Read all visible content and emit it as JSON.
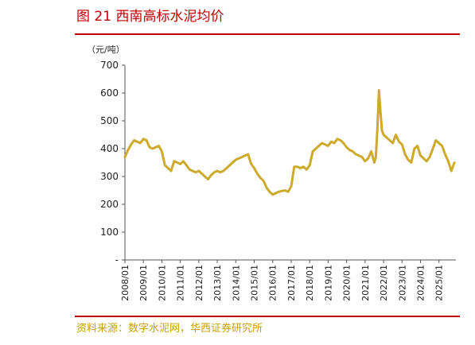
{
  "figure": {
    "title": "图 21 西南高标水泥均价",
    "source": "资料来源：数字水泥网，华西证券研究所"
  },
  "colors": {
    "accent": "#c00000",
    "series": "#cdaa2c",
    "source_text": "#c8a000"
  },
  "chart_data": {
    "type": "line",
    "title": "",
    "unit_label": "（元/吨）",
    "xlabel": "",
    "ylabel": "",
    "ylim": [
      0,
      700
    ],
    "yticks": [
      0,
      100,
      200,
      300,
      400,
      500,
      600,
      700
    ],
    "ytick_labels": [
      "-",
      "100",
      "200",
      "300",
      "400",
      "500",
      "600",
      "700"
    ],
    "xlim": [
      "2008-01",
      "2025-12"
    ],
    "xtick_labels": [
      "2008/01",
      "2009/01",
      "2010/01",
      "2011/01",
      "2012/01",
      "2013/01",
      "2014/01",
      "2015/01",
      "2016/01",
      "2017/01",
      "2018/01",
      "2019/01",
      "2020/01",
      "2021/01",
      "2022/01",
      "2023/01",
      "2024/01",
      "2025/01"
    ],
    "grid": false,
    "legend": "none",
    "series": [
      {
        "name": "",
        "x": [
          "2008-01",
          "2008-03",
          "2008-05",
          "2008-07",
          "2008-09",
          "2008-11",
          "2009-01",
          "2009-03",
          "2009-05",
          "2009-07",
          "2009-09",
          "2009-11",
          "2010-01",
          "2010-03",
          "2010-05",
          "2010-07",
          "2010-09",
          "2010-11",
          "2011-01",
          "2011-03",
          "2011-05",
          "2011-07",
          "2011-09",
          "2011-11",
          "2012-01",
          "2012-03",
          "2012-05",
          "2012-07",
          "2012-09",
          "2012-11",
          "2013-01",
          "2013-03",
          "2013-05",
          "2013-07",
          "2013-09",
          "2013-11",
          "2014-01",
          "2014-03",
          "2014-05",
          "2014-07",
          "2014-09",
          "2014-11",
          "2015-01",
          "2015-03",
          "2015-05",
          "2015-07",
          "2015-09",
          "2015-11",
          "2016-01",
          "2016-03",
          "2016-05",
          "2016-07",
          "2016-09",
          "2016-11",
          "2017-01",
          "2017-03",
          "2017-05",
          "2017-07",
          "2017-09",
          "2017-11",
          "2018-01",
          "2018-03",
          "2018-05",
          "2018-07",
          "2018-09",
          "2018-11",
          "2019-01",
          "2019-03",
          "2019-05",
          "2019-07",
          "2019-09",
          "2019-11",
          "2020-01",
          "2020-03",
          "2020-05",
          "2020-07",
          "2020-09",
          "2020-11",
          "2021-01",
          "2021-03",
          "2021-05",
          "2021-07",
          "2021-08",
          "2021-09",
          "2021-10",
          "2021-11",
          "2021-12",
          "2022-01",
          "2022-03",
          "2022-05",
          "2022-07",
          "2022-09",
          "2022-11",
          "2023-01",
          "2023-03",
          "2023-05",
          "2023-07",
          "2023-09",
          "2023-11",
          "2024-01",
          "2024-03",
          "2024-05",
          "2024-07",
          "2024-09",
          "2024-11",
          "2025-01",
          "2025-03",
          "2025-05",
          "2025-07",
          "2025-09",
          "2025-11"
        ],
        "y": [
          370,
          395,
          415,
          430,
          425,
          420,
          435,
          430,
          405,
          400,
          405,
          410,
          390,
          340,
          330,
          320,
          355,
          350,
          345,
          355,
          340,
          325,
          320,
          315,
          320,
          310,
          300,
          290,
          305,
          315,
          320,
          315,
          320,
          330,
          340,
          350,
          360,
          365,
          370,
          375,
          380,
          345,
          330,
          310,
          295,
          285,
          260,
          245,
          235,
          240,
          245,
          248,
          250,
          245,
          265,
          335,
          335,
          330,
          335,
          325,
          340,
          390,
          400,
          410,
          420,
          415,
          410,
          425,
          420,
          435,
          430,
          420,
          405,
          395,
          390,
          380,
          375,
          370,
          355,
          365,
          390,
          350,
          370,
          470,
          610,
          530,
          465,
          450,
          440,
          430,
          420,
          450,
          425,
          415,
          380,
          360,
          350,
          400,
          410,
          375,
          365,
          355,
          370,
          400,
          430,
          420,
          410,
          380,
          355,
          320,
          350
        ]
      }
    ]
  }
}
